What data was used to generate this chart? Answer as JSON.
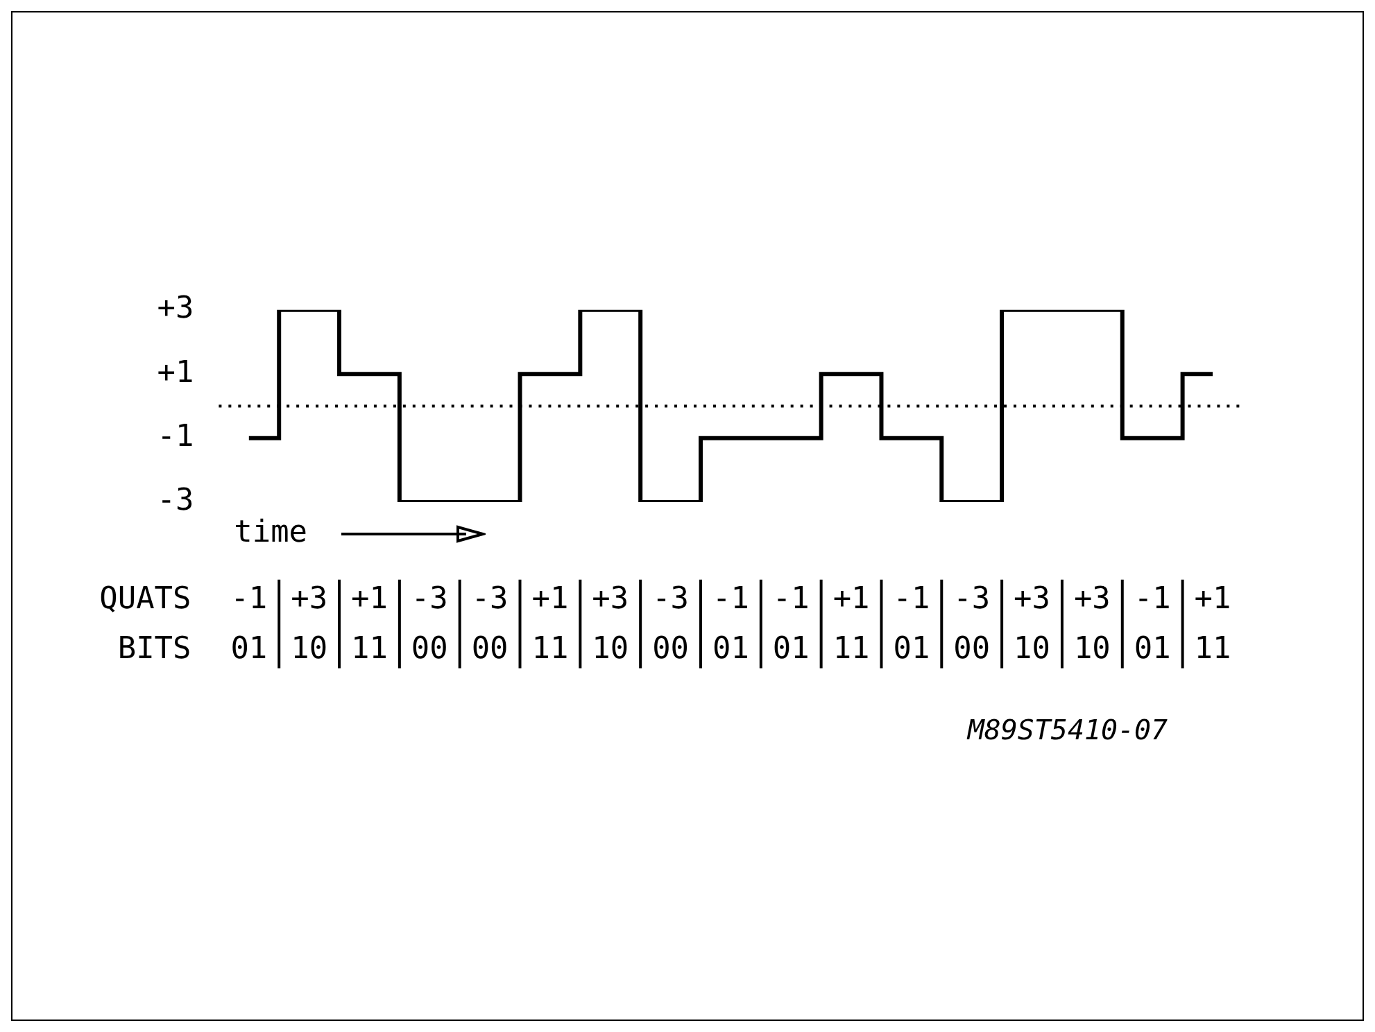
{
  "chart_data": {
    "type": "step",
    "categories": [
      "01",
      "10",
      "11",
      "00",
      "00",
      "11",
      "10",
      "00",
      "01",
      "01",
      "11",
      "01",
      "00",
      "10",
      "10",
      "01",
      "11"
    ],
    "values": [
      -1,
      3,
      1,
      -3,
      -3,
      1,
      3,
      -3,
      -1,
      -1,
      1,
      -1,
      -3,
      3,
      3,
      -1,
      1
    ],
    "value_labels": [
      "-1",
      "+3",
      "+1",
      "-3",
      "-3",
      "+1",
      "+3",
      "-3",
      "-1",
      "-1",
      "+1",
      "-1",
      "-3",
      "+3",
      "+3",
      "-1",
      "+1"
    ],
    "color": "#000000",
    "ylim": [
      -3,
      3
    ],
    "yticks": [
      {
        "value": 3,
        "label": "+3"
      },
      {
        "value": 1,
        "label": "+1"
      },
      {
        "value": -1,
        "label": "-1"
      },
      {
        "value": -3,
        "label": "-3"
      }
    ],
    "ref_lines": [
      {
        "axis": "y",
        "value": 0,
        "line_style": "dotted",
        "color": "#000000"
      }
    ],
    "annotations": [
      "QUATS",
      "BITS",
      "time",
      "M89ST5410-07"
    ],
    "grid": false,
    "legend": false,
    "marker": "none",
    "line_style": "solid"
  }
}
